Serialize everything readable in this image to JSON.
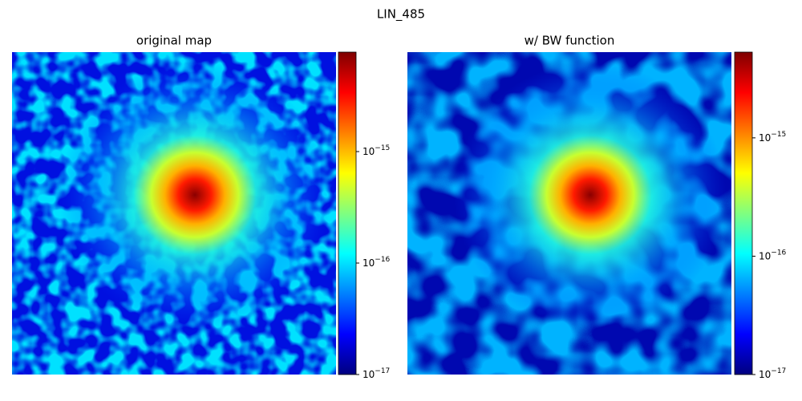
{
  "title": "LIN_485",
  "chart_data": [
    {
      "type": "heatmap",
      "title": "original map",
      "colormap": "jet",
      "colorbar_scale": "log",
      "clim": [
        1e-17,
        7.8e-15
      ],
      "cticks": [
        {
          "value": 1e-17,
          "label": "10−17"
        },
        {
          "value": 1e-16,
          "label": "10−16"
        },
        {
          "value": 1e-15,
          "label": "10−15"
        }
      ]
    },
    {
      "type": "heatmap",
      "title": "w/ BW function",
      "colormap": "jet",
      "colorbar_scale": "log",
      "clim": [
        1e-17,
        5.3e-15
      ],
      "cticks": [
        {
          "value": 1e-17,
          "label": "10−17"
        },
        {
          "value": 1e-16,
          "label": "10−16"
        },
        {
          "value": 1e-15,
          "label": "10−15"
        }
      ]
    }
  ]
}
